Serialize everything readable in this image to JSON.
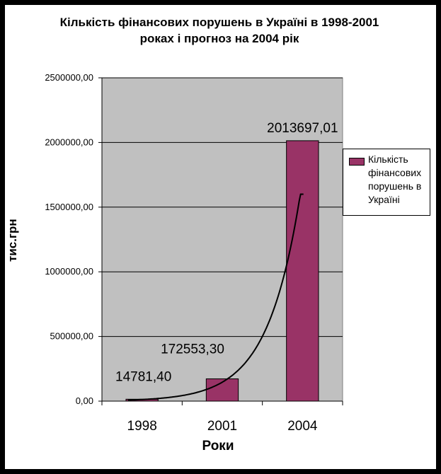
{
  "chart_data": {
    "type": "bar",
    "title": "Кількість фінансових порушень в Україні в 1998-2001 роках і прогноз на 2004 рік",
    "xlabel": "Роки",
    "ylabel": "тис.грн",
    "categories": [
      "1998",
      "2001",
      "2004"
    ],
    "series": [
      {
        "name": "Кількість фінансових порушень в Україні",
        "values": [
          14781.4,
          172553.3,
          2013697.01
        ],
        "color": "#993366"
      }
    ],
    "data_labels": [
      "14781,40",
      "172553,30",
      "2013697,01"
    ],
    "ylim": [
      0,
      2500000
    ],
    "yticks": [
      0,
      500000,
      1000000,
      1500000,
      2000000,
      2500000
    ],
    "ytick_labels": [
      "0,00",
      "500000,00",
      "1000000,00",
      "1500000,00",
      "2000000,00",
      "2500000,00"
    ],
    "grid": true,
    "plot_background": "#c0c0c0",
    "legend_position": "right",
    "trendline": "exponential"
  }
}
